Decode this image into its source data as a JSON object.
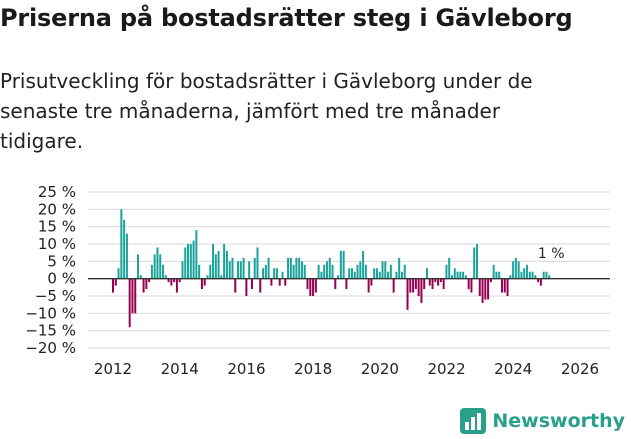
{
  "header": {
    "title": "Priserna på bostadsrätter steg i Gävleborg",
    "subtitle": "Prisutveckling för bostadsrätter i Gävleborg under de senaste tre månaderna, jämfört med tre månader tidigare."
  },
  "footer": {
    "brand": "Newsworthy"
  },
  "colors": {
    "positive": "#1aa39a",
    "negative": "#970052",
    "grid": "#d9d9d9",
    "zero": "#333333",
    "brand": "#28a08a"
  },
  "chart_data": {
    "type": "bar",
    "title": "Priserna på bostadsrätter steg i Gävleborg",
    "xlabel": "",
    "ylabel": "",
    "x_start": 2012.0,
    "step_years": 0.0833,
    "xlim": [
      2011.25,
      2026.9
    ],
    "ylim": [
      -20,
      25
    ],
    "y_ticks": [
      25,
      20,
      15,
      10,
      5,
      0,
      -5,
      -10,
      -15,
      -20
    ],
    "y_tick_labels": [
      "25 %",
      "20 %",
      "15 %",
      "10 %",
      "5 %",
      "0 %",
      "−5 %",
      "−10 %",
      "−15 %",
      "−20 %"
    ],
    "x_ticks": [
      2012,
      2014,
      2016,
      2018,
      2020,
      2022,
      2024,
      2026
    ],
    "x_tick_labels": [
      "2012",
      "2014",
      "2016",
      "2018",
      "2020",
      "2022",
      "2024",
      "2026"
    ],
    "grid": true,
    "annotation": {
      "label": "1 %",
      "value": 1
    },
    "series": [
      {
        "name": "Prisutveckling",
        "values": [
          -4,
          -2,
          3,
          20,
          17,
          13,
          -14,
          -10,
          -10,
          7,
          1,
          -4,
          -3,
          -1,
          4,
          7,
          9,
          7,
          4,
          1,
          -1,
          -2,
          -1,
          -4,
          -1,
          5,
          9,
          10,
          10,
          11,
          14,
          4,
          -3,
          -2,
          1,
          4,
          10,
          7,
          8,
          1,
          10,
          8,
          5,
          6,
          -4,
          5,
          5,
          6,
          -5,
          5,
          -3,
          6,
          9,
          -4,
          3,
          4,
          6,
          -2,
          3,
          3,
          -2,
          2,
          -2,
          6,
          6,
          4,
          6,
          6,
          5,
          4,
          -3,
          -5,
          -5,
          -4,
          4,
          2,
          4,
          5,
          6,
          4,
          -3,
          1,
          8,
          8,
          -3,
          3,
          3,
          2,
          4,
          5,
          8,
          4,
          -4,
          -2,
          3,
          3,
          2,
          5,
          5,
          2,
          4,
          -4,
          2,
          6,
          2,
          4,
          -9,
          -4,
          -4,
          -3,
          -5,
          -7,
          -3,
          3,
          -2,
          -3,
          -1,
          -2,
          -1,
          -3,
          4,
          6,
          1,
          3,
          2,
          2,
          2,
          1,
          -3,
          -4,
          9,
          10,
          -5,
          -7,
          -6,
          -6,
          -1,
          4,
          2,
          2,
          -4,
          -4,
          -5,
          1,
          5,
          6,
          5,
          2,
          3,
          4,
          2,
          2,
          1,
          -1,
          -2,
          2,
          2,
          1
        ]
      }
    ]
  }
}
